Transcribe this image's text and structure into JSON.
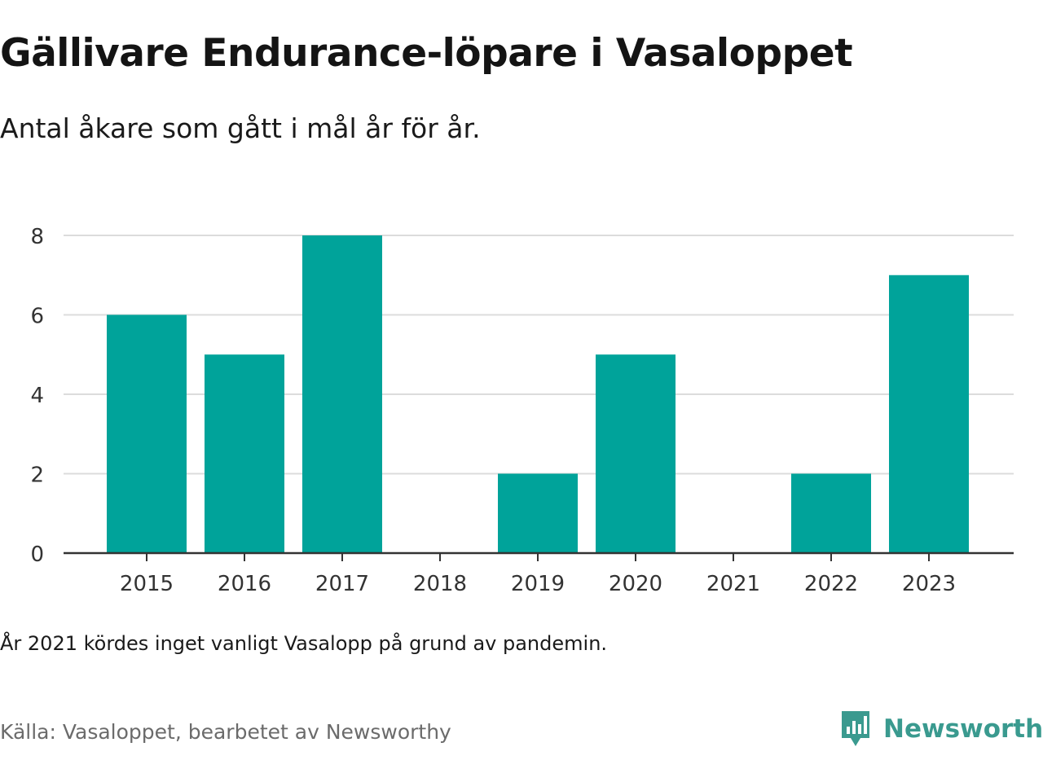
{
  "title": "Gällivare Endurance-löpare i Vasaloppet",
  "subtitle": "Antal åkare som gått i mål år för år.",
  "note": "År 2021 kördes inget vanligt Vasalopp på grund av pandemin.",
  "source": "Källa: Vasaloppet, bearbetet av Newsworthy",
  "brand": {
    "name": "Newsworthy",
    "icon": "newsworthy-logo-icon",
    "color": "#3a9a8f"
  },
  "colors": {
    "bar": "#00a39a",
    "grid": "#dcdcdc",
    "axis": "#333333"
  },
  "chart_data": {
    "type": "bar",
    "title": "Gällivare Endurance-löpare i Vasaloppet",
    "subtitle": "Antal åkare som gått i mål år för år.",
    "xlabel": "",
    "ylabel": "",
    "categories": [
      "2015",
      "2016",
      "2017",
      "2018",
      "2019",
      "2020",
      "2021",
      "2022",
      "2023"
    ],
    "values": [
      6,
      5,
      8,
      0,
      2,
      5,
      0,
      2,
      7
    ],
    "ylim": [
      0,
      8
    ],
    "yticks": [
      0,
      2,
      4,
      6,
      8
    ],
    "grid": true,
    "legend": "none"
  }
}
